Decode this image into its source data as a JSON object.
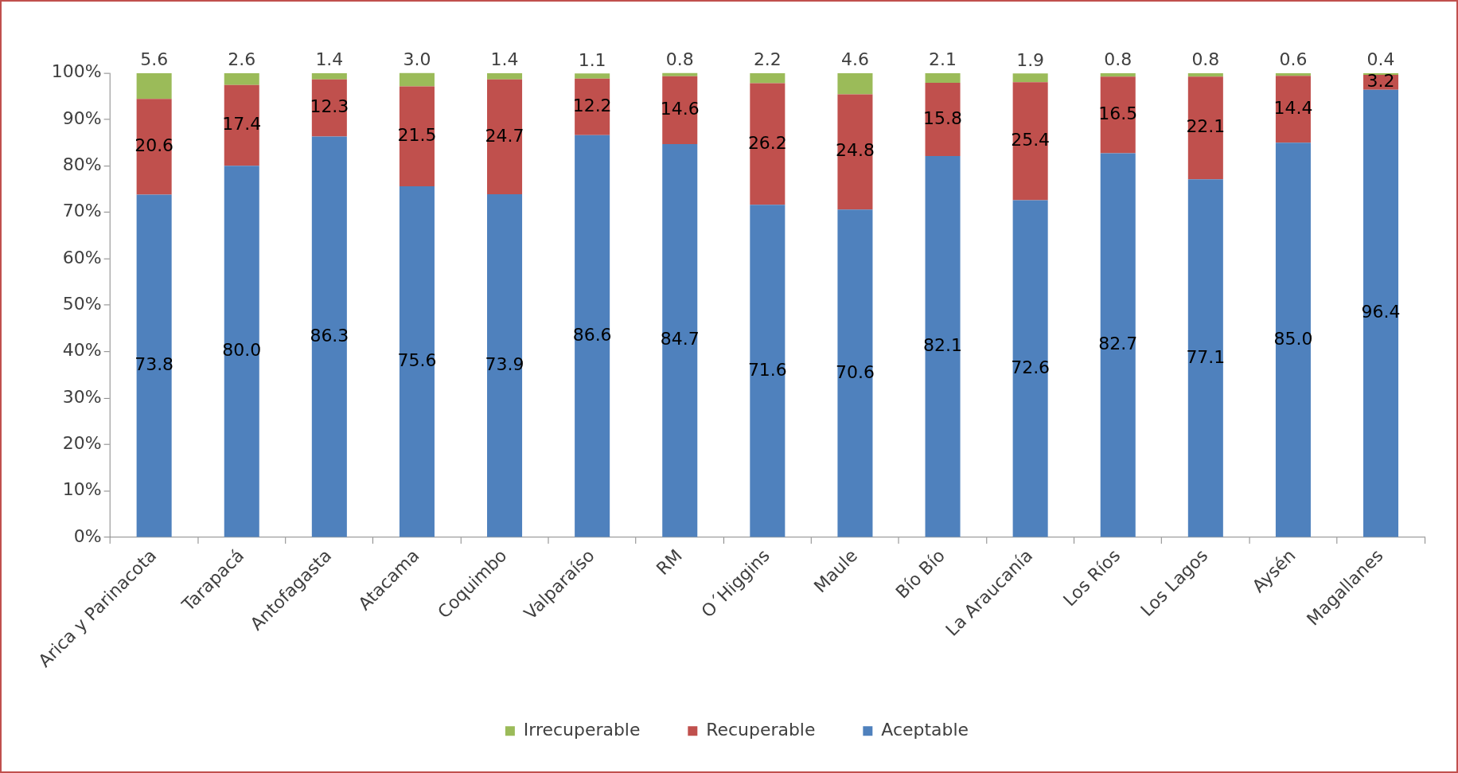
{
  "chart_data": {
    "type": "bar",
    "stacked": true,
    "categories": [
      "Arica y Parinacota",
      "Tarapacá",
      "Antofagasta",
      "Atacama",
      "Coquimbo",
      "Valparaíso",
      "RM",
      "O´Higgins",
      "Maule",
      "Bío Bío",
      "La Araucanía",
      "Los Ríos",
      "Los Lagos",
      "Aysén",
      "Magallanes"
    ],
    "series": [
      {
        "name": "Aceptable",
        "color": "#4f81bd",
        "values": [
          73.8,
          80.0,
          86.3,
          75.6,
          73.9,
          86.6,
          84.7,
          71.6,
          70.6,
          82.1,
          72.6,
          82.7,
          77.1,
          85.0,
          96.4
        ],
        "value_labels": [
          "73.8",
          "80.0",
          "86.3",
          "75.6",
          "73.9",
          "86.6",
          "84.7",
          "71.6",
          "70.6",
          "82.1",
          "72.6",
          "82.7",
          "77.1",
          "85.0",
          "96.4"
        ]
      },
      {
        "name": "Recuperable",
        "color": "#c0504d",
        "values": [
          20.6,
          17.4,
          12.3,
          21.5,
          24.7,
          12.2,
          14.6,
          26.2,
          24.8,
          15.8,
          25.4,
          16.5,
          22.1,
          14.4,
          3.2
        ],
        "value_labels": [
          "20.6",
          "17.4",
          "12.3",
          "21.5",
          "24.7",
          "12.2",
          "14.6",
          "26.2",
          "24.8",
          "15.8",
          "25.4",
          "16.5",
          "22.1",
          "14.4",
          "3.2"
        ]
      },
      {
        "name": "Irrecuperable",
        "color": "#9bbb59",
        "values": [
          5.6,
          2.6,
          1.4,
          3.0,
          1.4,
          1.1,
          0.8,
          2.2,
          4.6,
          2.1,
          1.9,
          0.8,
          0.8,
          0.6,
          0.4
        ],
        "value_labels": [
          "5.6",
          "2.6",
          "1.4",
          "3.0",
          "1.4",
          "1.1",
          "0.8",
          "2.2",
          "4.6",
          "2.1",
          "1.9",
          "0.8",
          "0.8",
          "0.6",
          "0.4"
        ]
      }
    ],
    "ylim": [
      0,
      100
    ],
    "yticks": [
      {
        "value": 0,
        "label": "0%"
      },
      {
        "value": 10,
        "label": "10%"
      },
      {
        "value": 20,
        "label": "20%"
      },
      {
        "value": 30,
        "label": "30%"
      },
      {
        "value": 40,
        "label": "40%"
      },
      {
        "value": 50,
        "label": "50%"
      },
      {
        "value": 60,
        "label": "60%"
      },
      {
        "value": 70,
        "label": "70%"
      },
      {
        "value": 80,
        "label": "80%"
      },
      {
        "value": 90,
        "label": "90%"
      },
      {
        "value": 100,
        "label": "100%"
      }
    ],
    "grid": false,
    "legend": "bottom"
  }
}
